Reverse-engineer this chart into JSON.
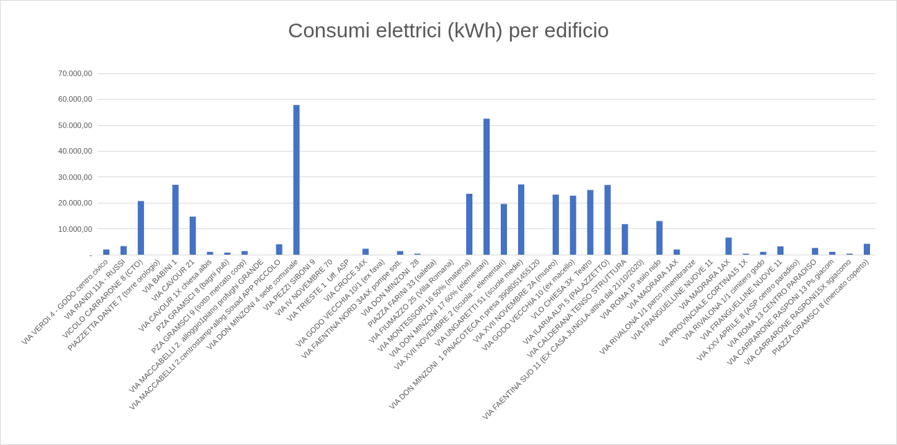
{
  "chart_data": {
    "type": "bar",
    "title": "Consumi elettrici (kWh) per edificio",
    "categories": [
      "VIA VERDI 4 - GODO centro.civico",
      "VIA RANDI 11A - RUSSI",
      "VICOLO CARRARONE 8 (CTO)",
      "PIAZZETTA DANTE 7 (torre orologio)",
      "VIA BABINI 1",
      "VIA CAVOUR 21",
      "VIA CAVOUR 1X chiesa albis",
      "PZA GRAMSCI 8 (bagni pub)",
      "PZA GRAMSCI 9 (sotto mercato coop)",
      "VIA MACCABELLI 2. alloggio1piano profughi GRANDE",
      "VIA MACCABELLI 2.centrostamp+allog.Souad APP PICCOLO",
      "VIA DON MINZONI 4 sede comunale",
      "VIA PEZZI SIBONI 9",
      "VIA IV NOVEMBRE 70",
      "VIA TRIESTE 1  Uff. ASP",
      "VIA CROCE 34X",
      "VIA GODO VECCHIA 10/1 (ex fava)",
      "VIA FAENTINA NORD 34AX pompe sott.",
      "VIA DON MINZONI  28",
      "PIAZZA FARINI 33 (saletta)",
      "VIA FIUMAZZO 25 (Villa Romana)",
      "VIA MONTESSORI 16 50% (materna)",
      "VIA DON MINZONI 17 60% (elementari)",
      "VIA XVII NOVEMBRE 2 (scuola – elementari)",
      "VIA UNGARETTI 51 (scuole medie)",
      "VIA DON MINZONI  1 PINACOTECA n.presa 3908051455120",
      "VIA XVII NOVEMBRE 2A (museo)",
      "VIA GODO VECCHIA 10 (ex macello)",
      "VLO CHIESA 3X  Teatro",
      "VIA ILARIA ALPI 5 (PALAZZETTO)",
      "VIA CALDERANA TENSO STRUTTURA",
      "VIA FAENTINA SUD 11 (EX CASA JUNGLA-attiva dal 21/10/2020)",
      "VIA ROMA 1P asilo nido",
      "VIA MADRARA 1AX",
      "VIA RIVALONA 1/1 parco rimembranze",
      "VIA FRANGUELLINE NUOVE 11",
      "VIA MADRARA 1AX",
      "VIA PROVINCIALE CORTINA15 1X",
      "VIA RIVALONA 1/1 cimitero godo",
      "VIA FRANGUELLINE NUOVE 11",
      "VIA XXV APRILE 8 (ASP centro paradiso)",
      "VIA ROMA 13 CENTRO PARADISO",
      "VIA CARRARONE RASPONI 13 Ps.giacom",
      "VIA CARRARONE RASPONI15X sgiacomo",
      "PIAZZA GRAMSCI 8 (mercato coperto)"
    ],
    "values": [
      2000,
      3300,
      20700,
      0,
      27000,
      14700,
      1100,
      800,
      1400,
      0,
      4000,
      57800,
      0,
      0,
      0,
      2300,
      0,
      1400,
      400,
      0,
      0,
      23500,
      52500,
      19600,
      27100,
      0,
      23200,
      22800,
      25000,
      26900,
      11800,
      0,
      13000,
      2000,
      0,
      0,
      6600,
      400,
      1100,
      3200,
      0,
      2600,
      1100,
      400,
      4200
    ],
    "color": "#4472c4",
    "ylim": [
      0,
      70000
    ],
    "yticks": [
      {
        "value": 0,
        "label": "-"
      },
      {
        "value": 10000,
        "label": "10.000,00"
      },
      {
        "value": 20000,
        "label": "20.000,00"
      },
      {
        "value": 30000,
        "label": "30.000,00"
      },
      {
        "value": 40000,
        "label": "40.000,00"
      },
      {
        "value": 50000,
        "label": "50.000,00"
      },
      {
        "value": 60000,
        "label": "60.000,00"
      },
      {
        "value": 70000,
        "label": "70.000,00"
      }
    ],
    "grid": "y"
  }
}
